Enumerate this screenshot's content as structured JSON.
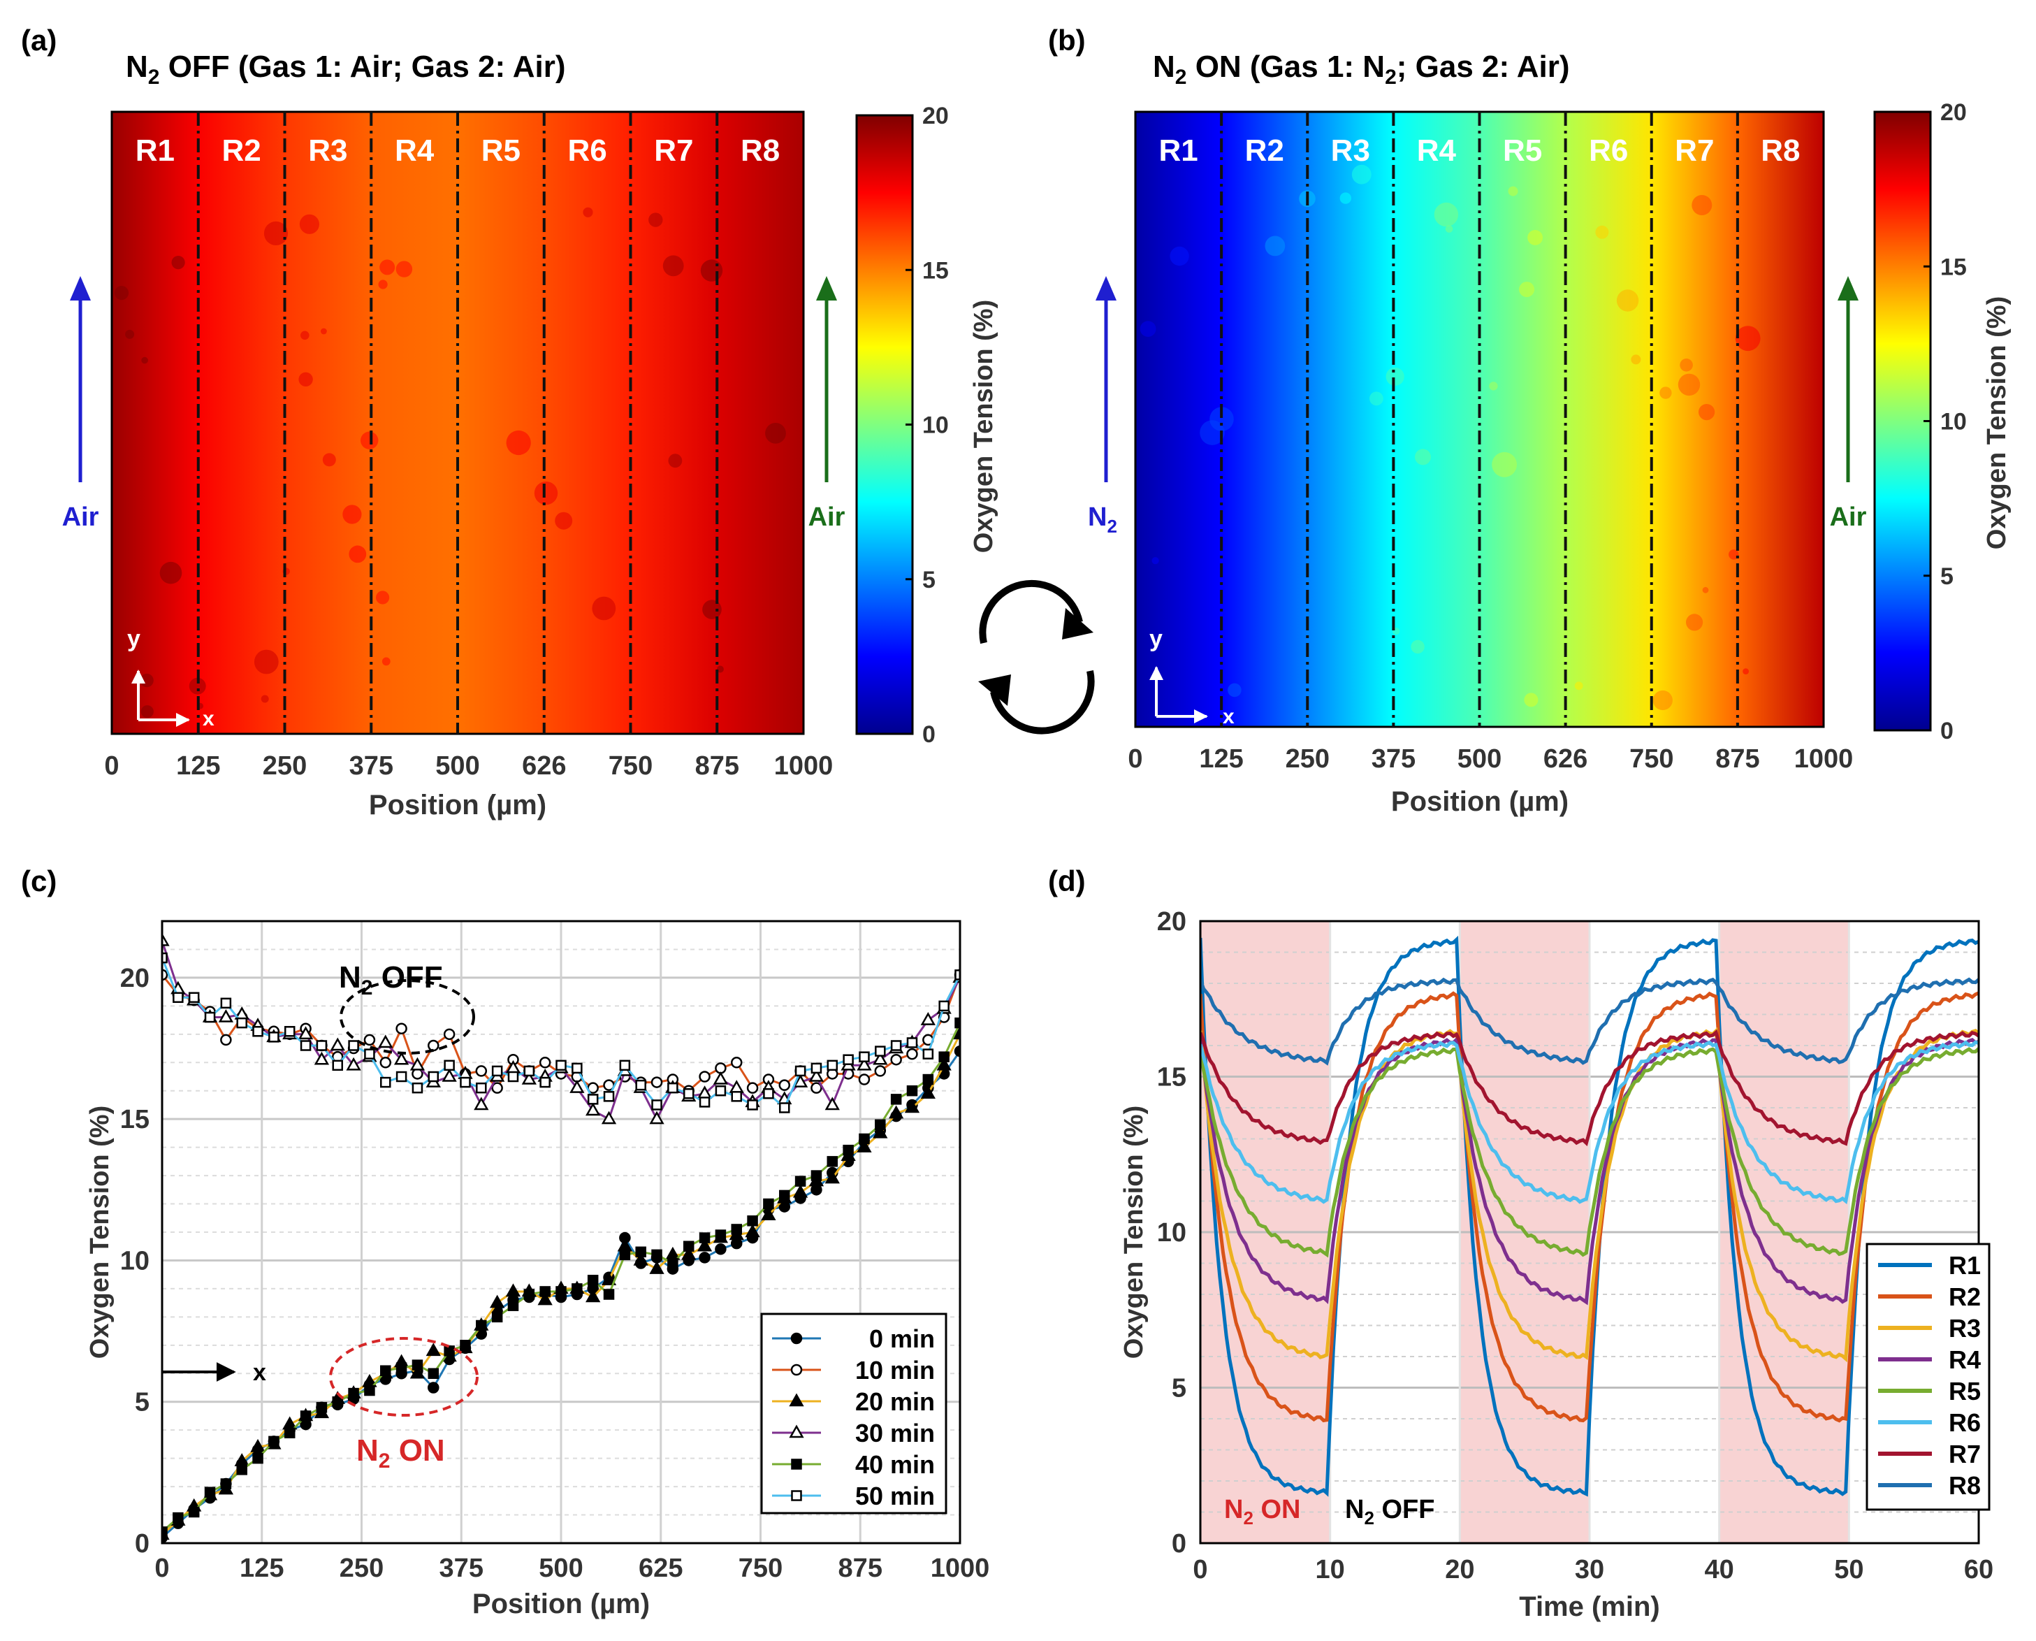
{
  "panels": {
    "a": {
      "letter": "(a)",
      "title": {
        "pre": "N",
        "sub": "2",
        "post": " OFF (Gas 1: Air; Gas 2: Air)"
      },
      "regions": [
        "R1",
        "R2",
        "R3",
        "R4",
        "R5",
        "R6",
        "R7",
        "R8"
      ],
      "xticks": [
        "0",
        "125",
        "250",
        "375",
        "500",
        "626",
        "750",
        "875",
        "1000"
      ],
      "xlabel": "Position (µm)",
      "left_gas": {
        "text": "Air",
        "sub": "",
        "color": "#1f1fd0"
      },
      "right_gas": {
        "text": "Air",
        "sub": "",
        "color": "#1a6e1a"
      },
      "axis_y": "y",
      "axis_x": "x",
      "colorbar": {
        "ticks": [
          "0",
          "5",
          "10",
          "15",
          "20"
        ],
        "label": "Oxygen Tension (%)"
      },
      "field_values": [
        19.5,
        17.6,
        16.4,
        15.6,
        15.3,
        16.0,
        16.9,
        18.2,
        19.2
      ]
    },
    "b": {
      "letter": "(b)",
      "title": {
        "pre": "N",
        "sub": "2",
        "post": " ON (Gas 1: N",
        "sub2": "2",
        "post2": "; Gas 2: Air)"
      },
      "regions": [
        "R1",
        "R2",
        "R3",
        "R4",
        "R5",
        "R6",
        "R7",
        "R8"
      ],
      "xticks": [
        "0",
        "125",
        "250",
        "375",
        "500",
        "626",
        "750",
        "875",
        "1000"
      ],
      "xlabel": "Position (µm)",
      "left_gas": {
        "text": "N",
        "sub": "2",
        "color": "#1f1fd0"
      },
      "right_gas": {
        "text": "Air",
        "sub": "",
        "color": "#1a6e1a"
      },
      "axis_y": "y",
      "axis_x": "x",
      "colorbar": {
        "ticks": [
          "0",
          "5",
          "10",
          "15",
          "20"
        ],
        "label": "Oxygen Tension (%)"
      },
      "field_values": [
        0.5,
        2.5,
        5.0,
        7.5,
        9.0,
        11.0,
        13.0,
        15.5,
        18.8
      ]
    },
    "c": {
      "letter": "(c)"
    },
    "d": {
      "letter": "(d)"
    }
  },
  "chart_data": [
    {
      "id": "c",
      "type": "line",
      "title": "",
      "xlabel": "Position (µm)",
      "ylabel": "Oxygen Tension (%)",
      "xlim": [
        0,
        1000
      ],
      "ylim": [
        0,
        22
      ],
      "xticks": [
        0,
        125,
        250,
        375,
        500,
        625,
        750,
        875,
        1000
      ],
      "yticks": [
        0,
        5,
        10,
        15,
        20
      ],
      "grid": true,
      "x": [
        0,
        20,
        40,
        60,
        80,
        100,
        120,
        140,
        160,
        180,
        200,
        220,
        240,
        260,
        280,
        300,
        320,
        340,
        360,
        380,
        400,
        420,
        440,
        460,
        480,
        500,
        520,
        540,
        560,
        580,
        600,
        620,
        640,
        660,
        680,
        700,
        720,
        740,
        760,
        780,
        800,
        820,
        840,
        860,
        880,
        900,
        920,
        940,
        960,
        980,
        1000
      ],
      "series": [
        {
          "name": "0 min",
          "group": "on",
          "color": "#1f77b4",
          "marker": "filled-circle",
          "values": [
            0.2,
            0.7,
            1.2,
            1.6,
            2.1,
            2.8,
            3.3,
            3.6,
            4.0,
            4.2,
            4.8,
            4.9,
            5.1,
            5.6,
            5.8,
            6.0,
            6.1,
            5.5,
            6.5,
            6.9,
            7.4,
            8.2,
            8.6,
            8.7,
            8.8,
            8.7,
            8.8,
            9.0,
            9.4,
            10.8,
            9.9,
            10.1,
            9.7,
            10.0,
            10.1,
            10.4,
            10.6,
            10.8,
            11.8,
            11.9,
            12.2,
            12.5,
            13.1,
            13.5,
            14.2,
            14.6,
            15.1,
            15.5,
            16.1,
            16.6,
            17.4
          ]
        },
        {
          "name": "10 min",
          "group": "off",
          "color": "#d95319",
          "marker": "open-circle",
          "values": [
            20.1,
            19.4,
            19.2,
            18.8,
            17.8,
            18.6,
            18.2,
            18.1,
            18.0,
            18.2,
            17.6,
            17.2,
            17.5,
            17.8,
            17.0,
            18.2,
            16.6,
            17.6,
            18.0,
            16.6,
            16.7,
            16.1,
            17.1,
            16.7,
            17.0,
            16.6,
            16.5,
            16.1,
            16.2,
            16.5,
            16.3,
            16.3,
            16.4,
            16.0,
            16.5,
            16.8,
            17.0,
            16.1,
            16.4,
            16.2,
            16.7,
            16.1,
            16.6,
            16.6,
            16.4,
            16.7,
            17.1,
            17.3,
            17.8,
            18.6,
            20.1
          ]
        },
        {
          "name": "20 min",
          "group": "on",
          "color": "#edb120",
          "marker": "filled-triangle",
          "values": [
            0.3,
            0.8,
            1.3,
            1.7,
            1.9,
            2.9,
            3.4,
            3.5,
            4.2,
            4.5,
            4.6,
            5.1,
            5.3,
            5.7,
            6.0,
            6.4,
            6.0,
            6.8,
            6.6,
            6.9,
            7.7,
            8.5,
            8.9,
            8.9,
            8.6,
            9.0,
            9.0,
            8.7,
            9.3,
            10.5,
            10.0,
            9.7,
            10.2,
            10.2,
            10.5,
            10.8,
            10.9,
            11.0,
            11.6,
            12.2,
            12.4,
            12.8,
            12.9,
            13.7,
            14.0,
            14.5,
            15.2,
            15.4,
            15.9,
            16.9,
            18.0
          ]
        },
        {
          "name": "30 min",
          "group": "off",
          "color": "#7e2f8e",
          "marker": "open-triangle",
          "values": [
            21.3,
            19.6,
            19.2,
            18.6,
            18.6,
            18.7,
            18.3,
            17.9,
            18.0,
            18.0,
            17.1,
            17.6,
            16.9,
            17.2,
            17.7,
            17.1,
            16.9,
            16.3,
            16.5,
            16.6,
            15.5,
            16.5,
            16.8,
            16.4,
            16.5,
            16.8,
            16.1,
            15.3,
            15.0,
            16.7,
            16.1,
            15.0,
            16.1,
            15.8,
            15.9,
            16.4,
            16.1,
            15.6,
            16.1,
            15.7,
            16.3,
            16.5,
            15.5,
            16.9,
            16.9,
            17.1,
            17.5,
            17.7,
            18.5,
            18.9,
            20.0
          ]
        },
        {
          "name": "40 min",
          "group": "on",
          "color": "#77ac30",
          "marker": "filled-square",
          "values": [
            0.4,
            0.9,
            1.1,
            1.8,
            2.1,
            2.6,
            3.0,
            3.6,
            3.9,
            4.5,
            4.8,
            5.0,
            5.3,
            5.4,
            6.1,
            6.2,
            6.3,
            6.0,
            6.8,
            7.0,
            7.7,
            8.0,
            8.4,
            8.8,
            8.9,
            8.9,
            9.0,
            9.3,
            8.8,
            10.2,
            10.3,
            10.2,
            9.9,
            10.5,
            10.8,
            10.9,
            11.1,
            11.4,
            12.0,
            12.3,
            12.8,
            13.0,
            13.5,
            13.9,
            14.3,
            14.8,
            15.7,
            16.0,
            16.4,
            17.2,
            18.4
          ]
        },
        {
          "name": "50 min",
          "group": "off",
          "color": "#4dbeee",
          "marker": "open-square",
          "values": [
            20.7,
            19.3,
            19.3,
            18.6,
            19.1,
            18.4,
            18.1,
            17.9,
            18.1,
            17.6,
            17.6,
            16.9,
            17.6,
            17.3,
            16.3,
            16.5,
            16.1,
            16.5,
            16.9,
            16.3,
            16.1,
            16.7,
            16.5,
            16.7,
            16.3,
            16.9,
            16.8,
            15.7,
            15.8,
            16.9,
            16.2,
            15.5,
            16.1,
            15.9,
            15.6,
            16.0,
            15.8,
            15.5,
            15.9,
            15.4,
            16.7,
            16.8,
            16.9,
            17.1,
            17.2,
            17.4,
            17.6,
            17.7,
            17.3,
            19.0,
            20.1
          ]
        }
      ],
      "annotations": [
        {
          "text": "N",
          "sub": "2",
          "post": " OFF",
          "color": "#000000"
        },
        {
          "text": "N",
          "sub": "2",
          "post": " ON",
          "color": "#d62728"
        }
      ],
      "x_axis_arrow_label": "x",
      "legend": "bottom-right"
    },
    {
      "id": "d",
      "type": "line",
      "title": "",
      "xlabel": "Time (min)",
      "ylabel": "Oxygen Tension (%)",
      "xlim": [
        0,
        60
      ],
      "ylim": [
        0,
        20
      ],
      "xticks": [
        0,
        10,
        20,
        30,
        40,
        50,
        60
      ],
      "yticks": [
        0,
        5,
        10,
        15,
        20
      ],
      "grid": true,
      "shaded_intervals": [
        [
          0,
          10
        ],
        [
          20,
          30
        ],
        [
          40,
          50
        ]
      ],
      "shaded_color": "#f8d3d3",
      "phase_labels": [
        {
          "text": "N",
          "sub": "2",
          "post": " ON",
          "color": "#d62728"
        },
        {
          "text": "N",
          "sub": "2",
          "post": " OFF",
          "color": "#000000"
        }
      ],
      "model": "exponential relaxation between ON level (end of N2 ON) and OFF level (end of N2 OFF)",
      "series": [
        {
          "name": "R1",
          "color": "#0072bd",
          "on_level": 1.6,
          "off_level": 19.4,
          "tau_on": 1.6,
          "tau_off": 1.7
        },
        {
          "name": "R2",
          "color": "#d95319",
          "on_level": 3.9,
          "off_level": 17.7,
          "tau_on": 1.9,
          "tau_off": 1.9
        },
        {
          "name": "R3",
          "color": "#edb120",
          "on_level": 5.9,
          "off_level": 16.5,
          "tau_on": 2.1,
          "tau_off": 2.0
        },
        {
          "name": "R4",
          "color": "#7e2f8e",
          "on_level": 7.7,
          "off_level": 16.2,
          "tau_on": 2.3,
          "tau_off": 2.0
        },
        {
          "name": "R5",
          "color": "#77ac30",
          "on_level": 9.2,
          "off_level": 15.9,
          "tau_on": 2.5,
          "tau_off": 2.1
        },
        {
          "name": "R6",
          "color": "#4dbeee",
          "on_level": 10.9,
          "off_level": 16.1,
          "tau_on": 2.6,
          "tau_off": 2.1
        },
        {
          "name": "R7",
          "color": "#a2142f",
          "on_level": 12.8,
          "off_level": 16.4,
          "tau_on": 2.8,
          "tau_off": 2.2
        },
        {
          "name": "R8",
          "color": "#1f6fb0",
          "on_level": 15.4,
          "off_level": 18.1,
          "tau_on": 3.0,
          "tau_off": 2.2
        }
      ],
      "legend": "bottom-right"
    }
  ]
}
